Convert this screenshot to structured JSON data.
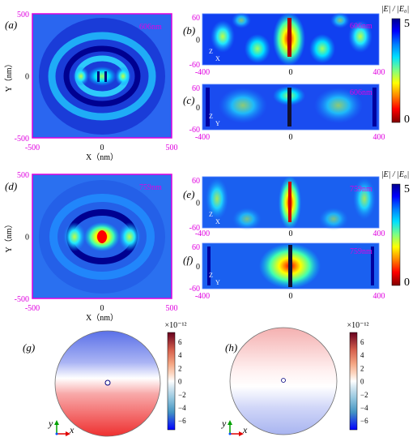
{
  "panels": {
    "a": {
      "letter": "(a)",
      "wavelength": "606nm"
    },
    "b": {
      "letter": "(b)",
      "wavelength": "606nm"
    },
    "c": {
      "letter": "(c)",
      "wavelength": "606nm"
    },
    "d": {
      "letter": "(d)",
      "wavelength": "759nm"
    },
    "e": {
      "letter": "(e)",
      "wavelength": "759nm"
    },
    "f": {
      "letter": "(f)",
      "wavelength": "759nm"
    },
    "g": {
      "letter": "(g)"
    },
    "h": {
      "letter": "(h)"
    }
  },
  "map_axes": {
    "x_label": "X（nm）",
    "y_label": "Y（nm）",
    "x_ticks": [
      "-500",
      "0",
      "500"
    ],
    "y_ticks": [
      "500",
      "0",
      "-500"
    ]
  },
  "cross_axes": {
    "x_ticks": [
      "-400",
      "0",
      "400"
    ],
    "y_ticks": [
      "60",
      "0",
      "-60"
    ],
    "axis_z": "Z",
    "axis_x": "X",
    "axis_y": "Y"
  },
  "colorbar_e": {
    "title": "|E| / |E₀|",
    "max_label": "5",
    "min_label": "0",
    "stops": [
      "#00008f",
      "#0000ff",
      "#0080ff",
      "#00e0ff",
      "#80ff80",
      "#ffff00",
      "#ff8000",
      "#ff0000",
      "#800000"
    ]
  },
  "colorbar_charge": {
    "exponent": "×10⁻¹²",
    "ticks": [
      "6",
      "4",
      "2",
      "0",
      "−2",
      "−4",
      "−6"
    ],
    "stops": [
      "#67001f",
      "#d6604d",
      "#f4a582",
      "#fddbc7",
      "#ffffff",
      "#d1e5f0",
      "#92c5de",
      "#4393c3",
      "#0000ff"
    ]
  },
  "triad": {
    "y": "y",
    "x": "x"
  },
  "colors": {
    "label_magenta": "#e000e0",
    "axis_green": "#00a000",
    "axis_red": "#e00000",
    "axis_blue": "#0050ff"
  }
}
